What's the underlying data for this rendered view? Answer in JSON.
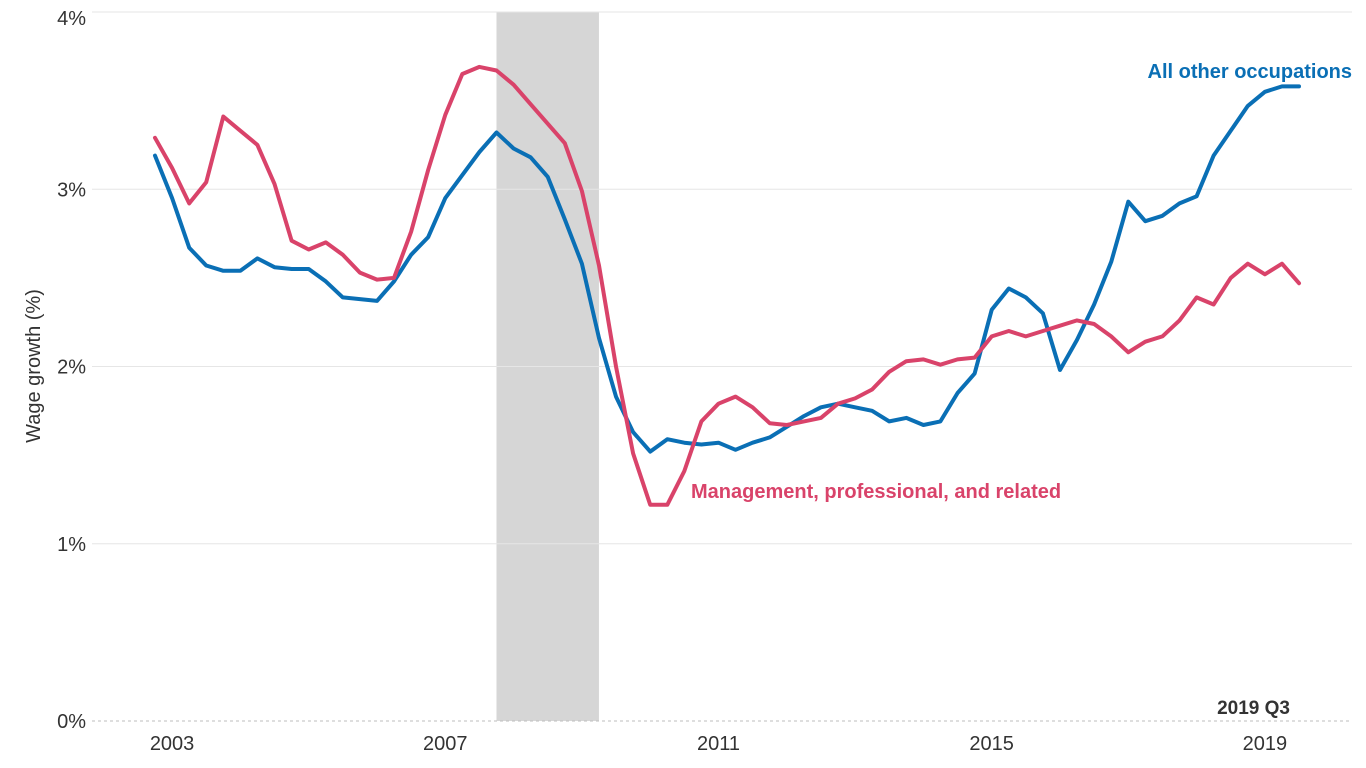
{
  "chart_data": {
    "type": "line",
    "xlabel": "",
    "ylabel": "Wage growth (%)",
    "ylim": [
      0,
      4
    ],
    "y_ticks": [
      "0%",
      "1%",
      "2%",
      "3%",
      "4%"
    ],
    "x_ticks": [
      "2003",
      "2007",
      "2011",
      "2015",
      "2019"
    ],
    "grid": "horizontal",
    "recession_shading": {
      "start": "2007 Q4",
      "end": "2009 Q2",
      "color": "#d6d6d6"
    },
    "note": "2019 Q3",
    "x": [
      "2002 Q4",
      "2003 Q1",
      "2003 Q2",
      "2003 Q3",
      "2003 Q4",
      "2004 Q1",
      "2004 Q2",
      "2004 Q3",
      "2004 Q4",
      "2005 Q1",
      "2005 Q2",
      "2005 Q3",
      "2005 Q4",
      "2006 Q1",
      "2006 Q2",
      "2006 Q3",
      "2006 Q4",
      "2007 Q1",
      "2007 Q2",
      "2007 Q3",
      "2007 Q4",
      "2008 Q1",
      "2008 Q2",
      "2008 Q3",
      "2008 Q4",
      "2009 Q1",
      "2009 Q2",
      "2009 Q3",
      "2009 Q4",
      "2010 Q1",
      "2010 Q2",
      "2010 Q3",
      "2010 Q4",
      "2011 Q1",
      "2011 Q2",
      "2011 Q3",
      "2011 Q4",
      "2012 Q1",
      "2012 Q2",
      "2012 Q3",
      "2012 Q4",
      "2013 Q1",
      "2013 Q2",
      "2013 Q3",
      "2013 Q4",
      "2014 Q1",
      "2014 Q2",
      "2014 Q3",
      "2014 Q4",
      "2015 Q1",
      "2015 Q2",
      "2015 Q3",
      "2015 Q4",
      "2016 Q1",
      "2016 Q2",
      "2016 Q3",
      "2016 Q4",
      "2017 Q1",
      "2017 Q2",
      "2017 Q3",
      "2017 Q4",
      "2018 Q1",
      "2018 Q2",
      "2018 Q3",
      "2018 Q4",
      "2019 Q1",
      "2019 Q2",
      "2019 Q3"
    ],
    "series": [
      {
        "name": "All other occupations",
        "color": "#0a6fb5",
        "values": [
          3.19,
          2.95,
          2.67,
          2.57,
          2.54,
          2.54,
          2.61,
          2.56,
          2.55,
          2.55,
          2.48,
          2.39,
          2.38,
          2.37,
          2.48,
          2.63,
          2.73,
          2.95,
          3.08,
          3.21,
          3.32,
          3.23,
          3.18,
          3.07,
          2.83,
          2.58,
          2.16,
          1.83,
          1.63,
          1.52,
          1.59,
          1.57,
          1.56,
          1.57,
          1.53,
          1.57,
          1.6,
          1.66,
          1.72,
          1.77,
          1.79,
          1.77,
          1.75,
          1.69,
          1.71,
          1.67,
          1.69,
          1.85,
          1.96,
          2.32,
          2.44,
          2.39,
          2.3,
          1.98,
          2.15,
          2.35,
          2.59,
          2.93,
          2.82,
          2.85,
          2.92,
          2.96,
          3.19,
          3.33,
          3.47,
          3.55,
          3.58,
          3.58
        ]
      },
      {
        "name": "Management, professional, and related",
        "color": "#d9436a",
        "values": [
          3.29,
          3.12,
          2.92,
          3.04,
          3.41,
          3.33,
          3.25,
          3.03,
          2.71,
          2.66,
          2.7,
          2.63,
          2.53,
          2.49,
          2.5,
          2.76,
          3.11,
          3.42,
          3.65,
          3.69,
          3.67,
          3.59,
          3.48,
          3.37,
          3.26,
          2.99,
          2.57,
          2.0,
          1.51,
          1.22,
          1.22,
          1.41,
          1.69,
          1.79,
          1.83,
          1.77,
          1.68,
          1.67,
          1.69,
          1.71,
          1.79,
          1.82,
          1.87,
          1.97,
          2.03,
          2.04,
          2.01,
          2.04,
          2.05,
          2.17,
          2.2,
          2.17,
          2.2,
          2.23,
          2.26,
          2.24,
          2.17,
          2.08,
          2.14,
          2.17,
          2.26,
          2.39,
          2.35,
          2.5,
          2.58,
          2.52,
          2.58,
          2.47
        ]
      }
    ]
  }
}
